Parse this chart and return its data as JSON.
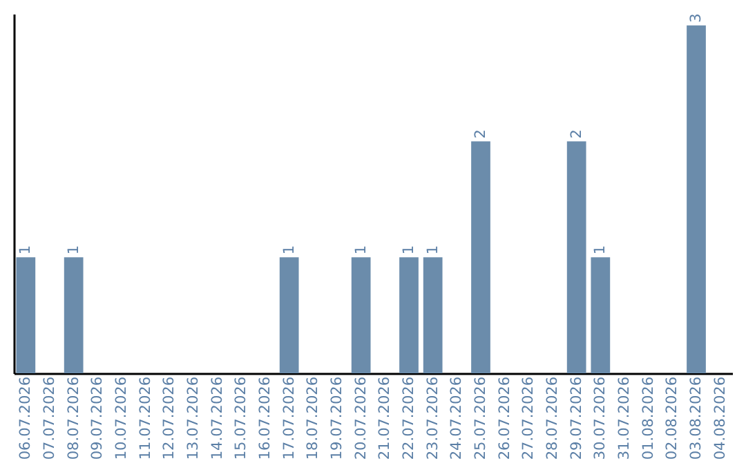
{
  "chart_data": {
    "type": "bar",
    "categories": [
      "06.07.2026",
      "07.07.2026",
      "08.07.2026",
      "09.07.2026",
      "10.07.2026",
      "11.07.2026",
      "12.07.2026",
      "13.07.2026",
      "14.07.2026",
      "15.07.2026",
      "16.07.2026",
      "17.07.2026",
      "18.07.2026",
      "19.07.2026",
      "20.07.2026",
      "21.07.2026",
      "22.07.2026",
      "23.07.2026",
      "24.07.2026",
      "25.07.2026",
      "26.07.2026",
      "27.07.2026",
      "28.07.2026",
      "29.07.2026",
      "30.07.2026",
      "31.07.2026",
      "01.08.2026",
      "02.08.2026",
      "03.08.2026",
      "04.08.2026"
    ],
    "values": [
      1,
      0,
      1,
      0,
      0,
      0,
      0,
      0,
      0,
      0,
      0,
      1,
      0,
      0,
      1,
      0,
      1,
      1,
      0,
      2,
      0,
      0,
      0,
      2,
      1,
      0,
      0,
      0,
      3,
      0
    ],
    "value_labels": [
      "1",
      null,
      "1",
      null,
      null,
      null,
      null,
      null,
      null,
      null,
      null,
      "1",
      null,
      null,
      "1",
      null,
      "1",
      "1",
      null,
      "2",
      null,
      null,
      null,
      "2",
      "1",
      null,
      null,
      null,
      "3",
      null
    ],
    "color": "#6b8cab",
    "ylim": [
      0,
      3.1
    ],
    "grid": false
  }
}
